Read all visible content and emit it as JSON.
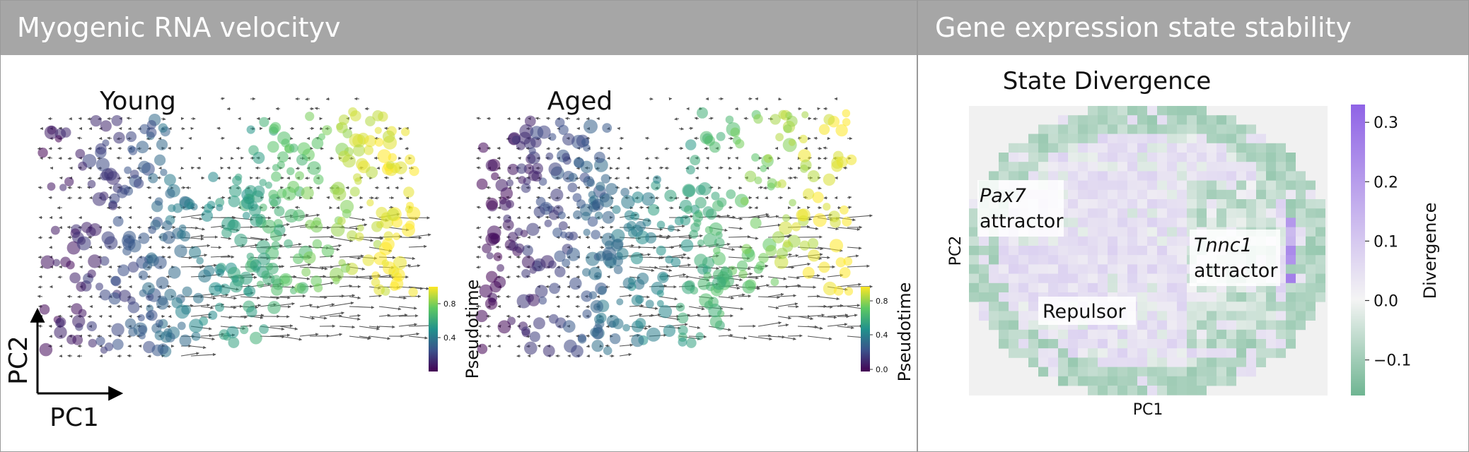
{
  "panels": {
    "left_header": "Myogenic RNA velocityv",
    "right_header": "Gene expression state stability"
  },
  "axes_indicator": {
    "x": "PC1",
    "y": "PC2"
  },
  "chart_data": [
    {
      "type": "scatter",
      "title": "Young",
      "colorbar": {
        "label": "Pseudotime",
        "ticks": [
          "0.8",
          "0.4"
        ],
        "cmap": "viridis"
      },
      "point_alpha": 0.55,
      "arrow_color": "#555555"
    },
    {
      "type": "scatter",
      "title": "Aged",
      "colorbar": {
        "label": "Pseudotime",
        "ticks": [
          "0.8",
          "0.4",
          "0.0"
        ],
        "cmap": "viridis"
      },
      "point_alpha": 0.55,
      "arrow_color": "#555555"
    },
    {
      "type": "heatmap",
      "title": "State Divergence",
      "xlabel": "PC1",
      "ylabel": "PC2",
      "colorbar": {
        "label": "Divergence",
        "ticks": [
          "0.3",
          "0.2",
          "0.1",
          "0.0",
          "−0.1"
        ],
        "range": [
          -0.16,
          0.33
        ],
        "colors": {
          "negative": "#6fb592",
          "zero": "#f4f4f4",
          "positive": "#8f63e6"
        }
      },
      "annotations": [
        {
          "italic": "Pax7",
          "text": "attractor"
        },
        {
          "italic": "Tnnc1",
          "text": "attractor"
        },
        {
          "italic": "",
          "text": "Repulsor"
        }
      ]
    }
  ]
}
